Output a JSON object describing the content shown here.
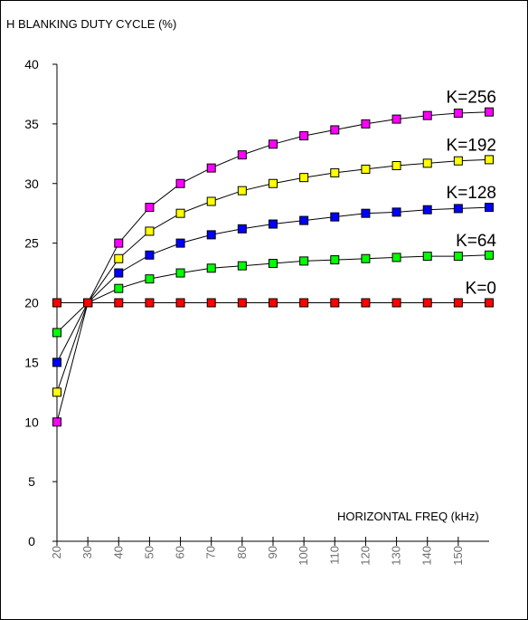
{
  "chart_data": {
    "type": "line",
    "ylabel": "H BLANKING DUTY CYCLE (%)",
    "xlabel": "HORIZONTAL FREQ (kHz)",
    "x": [
      20,
      30,
      40,
      50,
      60,
      70,
      80,
      90,
      100,
      110,
      120,
      130,
      140,
      150,
      160
    ],
    "xticks": [
      20,
      30,
      40,
      50,
      60,
      70,
      80,
      90,
      100,
      110,
      120,
      130,
      140,
      150
    ],
    "yticks": [
      0,
      5,
      10,
      15,
      20,
      25,
      30,
      35,
      40
    ],
    "xlim": [
      20,
      160
    ],
    "ylim": [
      0,
      40
    ],
    "grid": false,
    "series": [
      {
        "name": "K=256",
        "color": "#ff00ff",
        "values": [
          10.0,
          20.0,
          25.0,
          28.0,
          30.0,
          31.3,
          32.4,
          33.3,
          34.0,
          34.5,
          35.0,
          35.4,
          35.7,
          35.9,
          36.0
        ]
      },
      {
        "name": "K=192",
        "color": "#ffff00",
        "values": [
          12.5,
          20.0,
          23.7,
          26.0,
          27.5,
          28.5,
          29.4,
          30.0,
          30.5,
          30.9,
          31.2,
          31.5,
          31.7,
          31.9,
          32.0
        ]
      },
      {
        "name": "K=128",
        "color": "#0000ff",
        "values": [
          15.0,
          20.0,
          22.5,
          24.0,
          25.0,
          25.7,
          26.2,
          26.6,
          26.9,
          27.2,
          27.5,
          27.6,
          27.8,
          27.9,
          28.0
        ]
      },
      {
        "name": "K=64",
        "color": "#00ff00",
        "values": [
          17.5,
          20.0,
          21.2,
          22.0,
          22.5,
          22.9,
          23.1,
          23.3,
          23.5,
          23.6,
          23.7,
          23.8,
          23.9,
          23.9,
          24.0
        ]
      },
      {
        "name": "K=0",
        "color": "#ff0000",
        "values": [
          20.0,
          20.0,
          20.0,
          20.0,
          20.0,
          20.0,
          20.0,
          20.0,
          20.0,
          20.0,
          20.0,
          20.0,
          20.0,
          20.0,
          20.0
        ]
      }
    ]
  }
}
